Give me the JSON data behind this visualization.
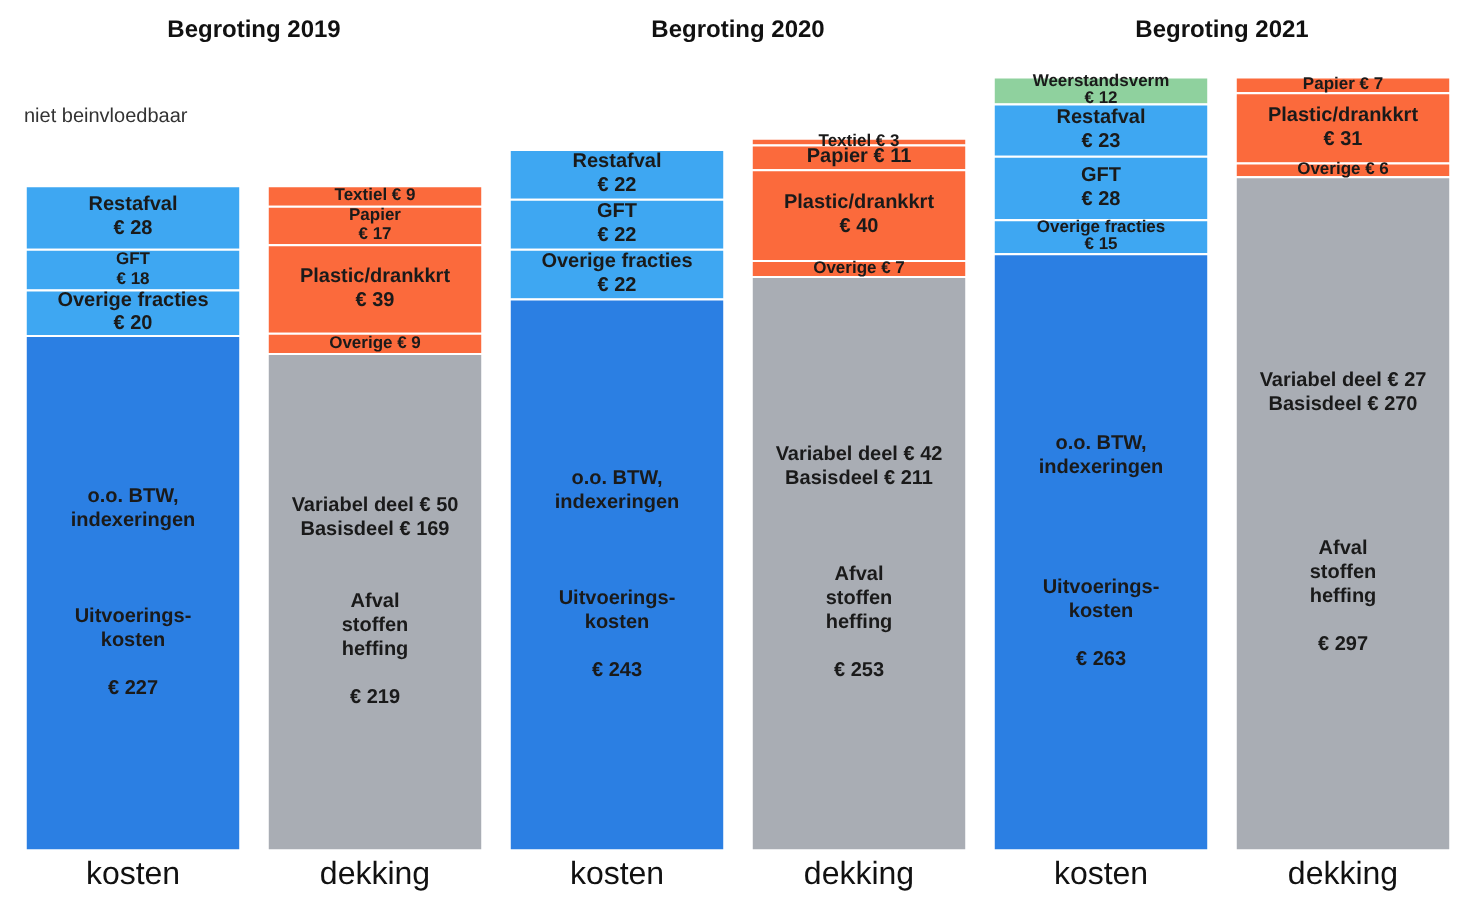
{
  "chart_data": {
    "type": "bar",
    "stacked": true,
    "tick_labels": "x",
    "grid": false,
    "legend": false,
    "categories": [
      "kosten",
      "dekking",
      "kosten",
      "dekking",
      "kosten",
      "dekking"
    ],
    "annotations": [
      "Begroting 2019",
      "Begroting 2020",
      "Begroting 2021",
      "niet beinvloedbaar"
    ],
    "series": [
      {
        "color": "#2b7fe3",
        "values": [
          227,
          null,
          243,
          null,
          263,
          null
        ],
        "value_labels": [
          "o.o. BTW,\nindexeringen\n\n\n\nUitvoerings-\nkosten\n\n€ 227",
          null,
          "o.o. BTW,\nindexeringen\n\n\n\nUitvoerings-\nkosten\n\n€ 243",
          null,
          "o.o. BTW,\nindexeringen\n\n\n\n\nUitvoerings-\nkosten\n\n€ 263",
          null
        ]
      },
      {
        "color": "#3ea7f2",
        "values": [
          20,
          null,
          22,
          null,
          15,
          null
        ],
        "value_labels": [
          "Overige fracties\n€ 20",
          null,
          "Overige fracties\n€ 22",
          null,
          "Overige fracties\n€ 15",
          null
        ]
      },
      {
        "color": "#3ea7f2",
        "values": [
          18,
          null,
          22,
          null,
          28,
          null
        ],
        "value_labels": [
          "GFT\n€ 18",
          null,
          "GFT\n€ 22",
          null,
          "GFT\n€ 28",
          null
        ]
      },
      {
        "color": "#3ea7f2",
        "values": [
          28,
          null,
          22,
          null,
          23,
          null
        ],
        "value_labels": [
          "Restafval\n€ 28",
          null,
          "Restafval\n€ 22",
          null,
          "Restafval\n€ 23",
          null
        ]
      },
      {
        "color": "#8fd19e",
        "values": [
          null,
          null,
          null,
          null,
          12,
          null
        ],
        "value_labels": [
          null,
          null,
          null,
          null,
          "Weerstandsverm\n€ 12",
          null
        ]
      },
      {
        "color": "#a9adb4",
        "values": [
          null,
          219,
          null,
          253,
          null,
          297
        ],
        "value_labels": [
          null,
          "Variabel deel € 50\nBasisdeel € 169\n\n\nAfval\nstoffen\nheffing\n\n€ 219",
          null,
          "Variabel deel € 42\nBasisdeel € 211\n\n\n\nAfval\nstoffen\nheffing\n\n€ 253",
          null,
          "Variabel deel € 27\nBasisdeel € 270\n\n\n\n\n\nAfval\nstoffen\nheffing\n\n€ 297"
        ]
      },
      {
        "color": "#fb6a3c",
        "values": [
          null,
          9,
          null,
          7,
          null,
          6
        ],
        "value_labels": [
          null,
          "Overige € 9",
          null,
          "Overige € 7",
          null,
          "Overige € 6"
        ]
      },
      {
        "color": "#fb6a3c",
        "values": [
          null,
          39,
          null,
          40,
          null,
          31
        ],
        "value_labels": [
          null,
          "Plastic/drankkrt\n€ 39",
          null,
          "Plastic/drankkrt\n€ 40",
          null,
          "Plastic/drankkrt\n€ 31"
        ]
      },
      {
        "color": "#fb6a3c",
        "values": [
          null,
          17,
          null,
          11,
          null,
          7
        ],
        "value_labels": [
          null,
          "Papier\n€ 17",
          null,
          "Papier € 11",
          null,
          "Papier € 7"
        ]
      },
      {
        "color": "#fb6a3c",
        "values": [
          null,
          9,
          null,
          3,
          null,
          null
        ],
        "value_labels": [
          null,
          "Textiel € 9",
          null,
          "Textiel € 3",
          null,
          null
        ]
      }
    ]
  }
}
